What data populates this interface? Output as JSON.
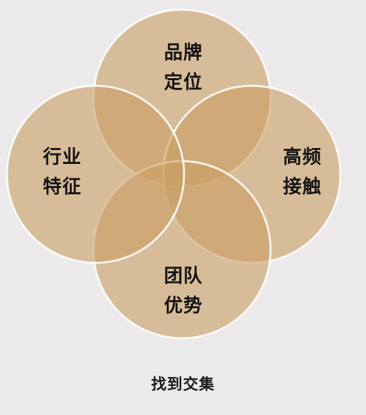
{
  "diagram": {
    "circles": [
      {
        "id": "top",
        "lines": [
          "品牌",
          "定位"
        ]
      },
      {
        "id": "right",
        "lines": [
          "高频",
          "接触"
        ]
      },
      {
        "id": "bottom",
        "lines": [
          "团队",
          "优势"
        ]
      },
      {
        "id": "left",
        "lines": [
          "行业",
          "特征"
        ]
      }
    ],
    "fill_color": "#c99e63",
    "stroke_color": "#ffffff",
    "caption": "找到交集"
  }
}
